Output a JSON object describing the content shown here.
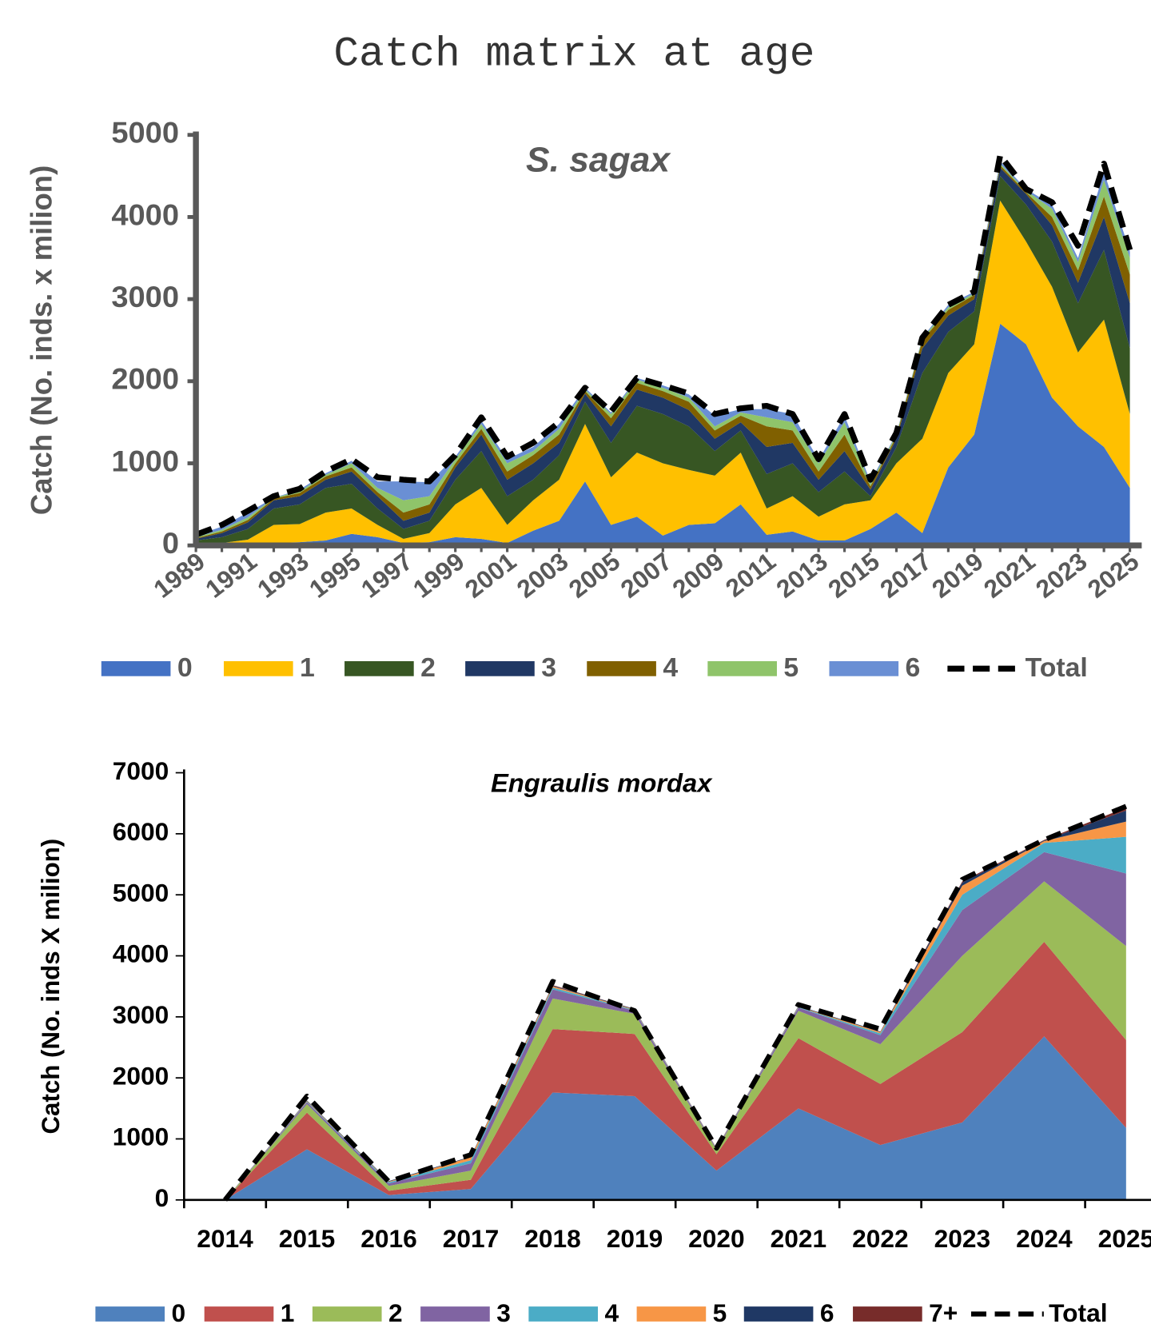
{
  "title": "Catch matrix at age",
  "chart_data": [
    {
      "type": "area",
      "stacked": true,
      "title": "S. sagax",
      "ylabel": "Catch (No. inds. x milion)",
      "categories": [
        "1989",
        null,
        "1991",
        null,
        "1993",
        null,
        "1995",
        null,
        "1997",
        null,
        "1999",
        null,
        "2001",
        null,
        "2003",
        null,
        "2005",
        null,
        "2007",
        null,
        "2009",
        null,
        "2011",
        null,
        "2013",
        null,
        "2015",
        null,
        "2017",
        null,
        "2019",
        null,
        "2021",
        null,
        "2023",
        null,
        "2025"
      ],
      "ylim": [
        0,
        5000
      ],
      "yticks": [
        0,
        1000,
        2000,
        3000,
        4000,
        5000
      ],
      "legend": "bottom",
      "series": [
        {
          "name": "0",
          "color": "#4472c4",
          "values": [
            10,
            10,
            20,
            30,
            40,
            60,
            140,
            100,
            30,
            40,
            100,
            80,
            30,
            180,
            300,
            780,
            250,
            350,
            120,
            250,
            270,
            500,
            130,
            170,
            60,
            60,
            200,
            400,
            150,
            950,
            1350,
            2700,
            2450,
            1800,
            1450,
            1200,
            700
          ]
        },
        {
          "name": "1",
          "color": "#ffc000",
          "values": [
            10,
            20,
            50,
            220,
            220,
            340,
            310,
            150,
            50,
            110,
            400,
            620,
            220,
            370,
            500,
            700,
            580,
            780,
            880,
            670,
            580,
            630,
            320,
            430,
            290,
            440,
            350,
            600,
            1150,
            1150,
            1100,
            1500,
            1250,
            1350,
            900,
            1550,
            900
          ]
        },
        {
          "name": "2",
          "color": "#375623",
          "values": [
            40,
            70,
            130,
            200,
            240,
            300,
            300,
            200,
            120,
            150,
            300,
            450,
            350,
            250,
            300,
            270,
            420,
            570,
            600,
            530,
            300,
            270,
            420,
            400,
            300,
            400,
            50,
            200,
            800,
            500,
            400,
            300,
            450,
            550,
            600,
            850,
            800
          ]
        },
        {
          "name": "3",
          "color": "#203864",
          "values": [
            20,
            50,
            80,
            100,
            100,
            100,
            150,
            150,
            100,
            100,
            150,
            200,
            200,
            200,
            150,
            100,
            200,
            200,
            200,
            200,
            150,
            100,
            330,
            250,
            150,
            250,
            80,
            100,
            300,
            200,
            150,
            100,
            130,
            200,
            250,
            400,
            550
          ]
        },
        {
          "name": "4",
          "color": "#806000",
          "values": [
            10,
            20,
            30,
            20,
            40,
            40,
            50,
            50,
            100,
            100,
            50,
            70,
            100,
            100,
            100,
            30,
            100,
            80,
            80,
            100,
            100,
            80,
            250,
            150,
            100,
            200,
            40,
            30,
            100,
            70,
            50,
            30,
            20,
            100,
            150,
            250,
            350
          ]
        },
        {
          "name": "5",
          "color": "#8fc46a",
          "values": [
            10,
            20,
            30,
            10,
            20,
            20,
            50,
            50,
            150,
            100,
            50,
            60,
            100,
            50,
            70,
            20,
            50,
            40,
            40,
            50,
            50,
            40,
            110,
            100,
            100,
            150,
            30,
            20,
            20,
            30,
            20,
            20,
            20,
            100,
            100,
            200,
            200
          ]
        },
        {
          "name": "6",
          "color": "#6a8fd4",
          "values": [
            20,
            40,
            60,
            0,
            20,
            20,
            30,
            80,
            230,
            170,
            30,
            40,
            50,
            50,
            60,
            20,
            20,
            20,
            30,
            40,
            130,
            40,
            100,
            100,
            40,
            80,
            30,
            10,
            10,
            30,
            20,
            30,
            20,
            50,
            50,
            100,
            80
          ]
        },
        {
          "name": "Total",
          "type": "line",
          "dashed": true,
          "color": "#000000",
          "values": [
            130,
            250,
            420,
            600,
            690,
            900,
            1050,
            830,
            800,
            780,
            1100,
            1560,
            1080,
            1250,
            1500,
            1920,
            1630,
            2040,
            1950,
            1850,
            1600,
            1670,
            1700,
            1600,
            1050,
            1600,
            800,
            1370,
            2530,
            2930,
            3090,
            4750,
            4340,
            4180,
            3650,
            4650,
            3600
          ]
        }
      ]
    },
    {
      "type": "area",
      "stacked": true,
      "title": "Engraulis mordax",
      "ylabel": "Catch (No. inds X milion)",
      "categories": [
        "2014",
        "2015",
        "2016",
        "2017",
        "2018",
        "2019",
        "2020",
        "2021",
        "2022",
        "2023",
        "2024",
        "2025"
      ],
      "ylim": [
        0,
        7000
      ],
      "yticks": [
        0,
        1000,
        2000,
        3000,
        4000,
        5000,
        6000,
        7000
      ],
      "legend": "bottom",
      "series": [
        {
          "name": "0",
          "color": "#4f81bd",
          "values": [
            0,
            830,
            80,
            180,
            1760,
            1700,
            480,
            1500,
            900,
            1270,
            2680,
            1180
          ]
        },
        {
          "name": "1",
          "color": "#c0504d",
          "values": [
            0,
            600,
            70,
            150,
            1040,
            1020,
            270,
            1150,
            1000,
            1480,
            1550,
            1440
          ]
        },
        {
          "name": "2",
          "color": "#9bbb59",
          "values": [
            0,
            140,
            80,
            150,
            500,
            330,
            70,
            450,
            650,
            1250,
            990,
            1540
          ]
        },
        {
          "name": "3",
          "color": "#8064a2",
          "values": [
            0,
            30,
            40,
            120,
            150,
            50,
            20,
            50,
            150,
            750,
            480,
            1190
          ]
        },
        {
          "name": "4",
          "color": "#4bacc6",
          "values": [
            0,
            10,
            20,
            50,
            30,
            10,
            5,
            10,
            30,
            250,
            150,
            600
          ]
        },
        {
          "name": "5",
          "color": "#f79646",
          "values": [
            0,
            10,
            10,
            50,
            20,
            10,
            5,
            10,
            20,
            150,
            30,
            250
          ]
        },
        {
          "name": "6",
          "color": "#1f3864",
          "values": [
            0,
            10,
            10,
            10,
            10,
            10,
            2,
            10,
            10,
            50,
            10,
            180
          ]
        },
        {
          "name": "7+",
          "color": "#772c2a",
          "values": [
            0,
            0,
            0,
            0,
            10,
            0,
            0,
            0,
            0,
            20,
            10,
            50
          ]
        },
        {
          "name": "Total",
          "type": "line",
          "dashed": true,
          "color": "#000000",
          "values": [
            0,
            1700,
            300,
            740,
            3580,
            3100,
            850,
            3200,
            2800,
            5250,
            5900,
            6450
          ]
        }
      ]
    }
  ]
}
